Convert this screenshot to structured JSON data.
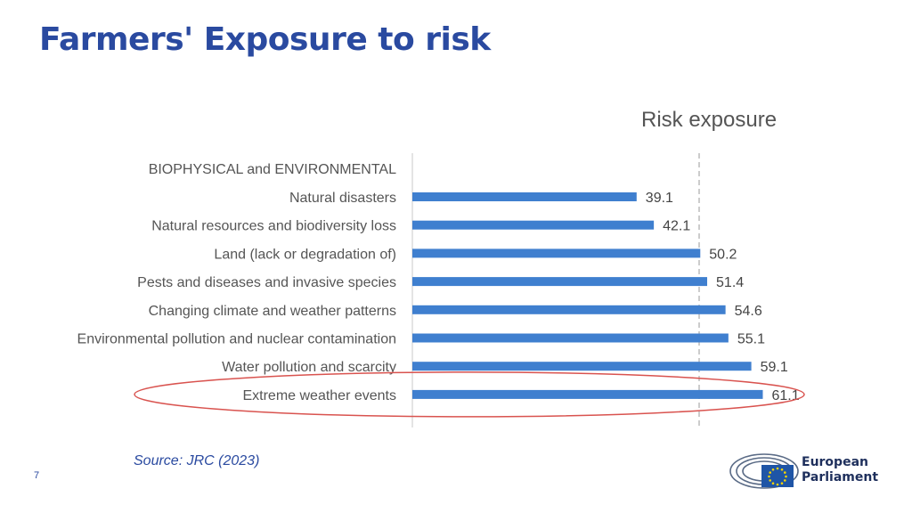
{
  "slide": {
    "title": "Farmers' Exposure to risk",
    "source": "Source: JRC (2023)",
    "page_number": "7",
    "logo": {
      "line1": "European",
      "line2": "Parliament"
    }
  },
  "colors": {
    "title": "#2a4aa0",
    "bar": "#3f7fcf",
    "highlight": "#d9534f"
  },
  "chart_data": {
    "type": "bar",
    "orientation": "horizontal",
    "title": "Risk exposure",
    "group_heading": "BIOPHYSICAL and ENVIRONMENTAL",
    "categories": [
      "Natural disasters",
      "Natural resources and biodiversity loss",
      "Land (lack or degradation of)",
      "Pests and diseases and invasive species",
      "Changing climate and weather patterns",
      "Environmental pollution and nuclear contamination",
      "Water pollution and scarcity",
      "Extreme weather events"
    ],
    "values": [
      39.1,
      42.1,
      50.2,
      51.4,
      54.6,
      55.1,
      59.1,
      61.1
    ],
    "value_labels": [
      "39.1",
      "42.1",
      "50.2",
      "51.4",
      "54.6",
      "55.1",
      "59.1",
      "61.1"
    ],
    "reference_line": 50,
    "highlighted_category": "Extreme weather events",
    "grid": false,
    "legend": "none"
  }
}
